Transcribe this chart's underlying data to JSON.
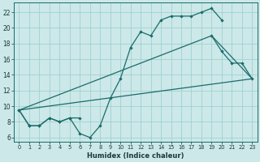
{
  "xlabel": "Humidex (Indice chaleur)",
  "bg_color": "#cce8e8",
  "grid_color": "#99cccc",
  "line_color": "#1a6b6b",
  "xlim": [
    -0.5,
    23.5
  ],
  "ylim": [
    5.5,
    23.2
  ],
  "xticks": [
    0,
    1,
    2,
    3,
    4,
    5,
    6,
    7,
    8,
    9,
    10,
    11,
    12,
    13,
    14,
    15,
    16,
    17,
    18,
    19,
    20,
    21,
    22,
    23
  ],
  "yticks": [
    6,
    8,
    10,
    12,
    14,
    16,
    18,
    20,
    22
  ],
  "line1_x": [
    0,
    1,
    2,
    3,
    4,
    5,
    6,
    7,
    8,
    9,
    10,
    11,
    12,
    13,
    14,
    15,
    16,
    17,
    18,
    19,
    20
  ],
  "line1_y": [
    9.5,
    7.5,
    7.5,
    8.5,
    8.0,
    8.5,
    6.5,
    6.0,
    7.5,
    11.0,
    13.5,
    17.5,
    19.5,
    19.0,
    21.0,
    21.5,
    21.5,
    21.5,
    22.0,
    22.5,
    21.0
  ],
  "line2_x": [
    0,
    1,
    2,
    3,
    4,
    5,
    6,
    19,
    20,
    21,
    22,
    23
  ],
  "line2_y": [
    9.5,
    7.5,
    7.5,
    8.5,
    8.0,
    8.5,
    8.5,
    19.0,
    17.0,
    15.5,
    15.5,
    13.5
  ],
  "line2_break": 6,
  "line3_x": [
    0,
    19,
    23
  ],
  "line3_y": [
    9.5,
    19.0,
    13.5
  ],
  "line4_x": [
    0,
    23
  ],
  "line4_y": [
    9.5,
    13.5
  ]
}
